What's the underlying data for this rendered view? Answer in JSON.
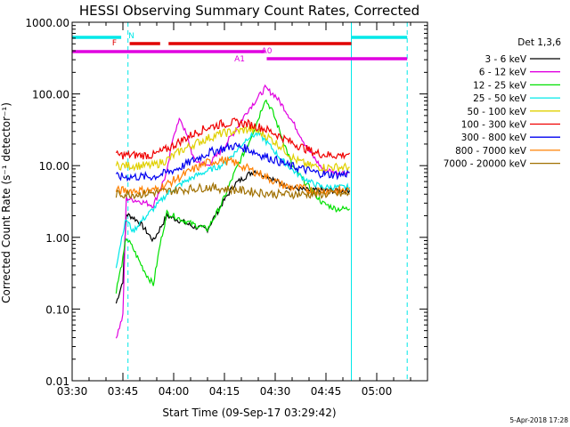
{
  "chart_data": {
    "type": "line",
    "title": "HESSI Observing Summary Count Rates, Corrected",
    "xlabel": "Start Time (09-Sep-17 03:29:42)",
    "ylabel": "Corrected Count Rate (s⁻¹ detector⁻¹)",
    "yscale": "log",
    "ylim": [
      0.01,
      1000
    ],
    "xlim_minutes": [
      0,
      105
    ],
    "x_ticks": [
      {
        "m": 0,
        "label": "03:30"
      },
      {
        "m": 15,
        "label": "03:45"
      },
      {
        "m": 30,
        "label": "04:00"
      },
      {
        "m": 45,
        "label": "04:15"
      },
      {
        "m": 60,
        "label": "04:30"
      },
      {
        "m": 75,
        "label": "04:45"
      },
      {
        "m": 90,
        "label": "05:00"
      }
    ],
    "y_ticks": [
      {
        "v": 0.01,
        "label": "0.01"
      },
      {
        "v": 0.1,
        "label": "0.10"
      },
      {
        "v": 1,
        "label": "1.00"
      },
      {
        "v": 10,
        "label": "10.00"
      },
      {
        "v": 100,
        "label": "100.00"
      },
      {
        "v": 1000,
        "label": "1000.00"
      }
    ],
    "legend_title": "Det 1,3,6",
    "legend_placement": "top-right",
    "series": [
      {
        "name": "3 - 6 keV",
        "color": "#000000",
        "points": [
          [
            13,
            0.12
          ],
          [
            15,
            0.25
          ],
          [
            16,
            2.1
          ],
          [
            18,
            1.9
          ],
          [
            20,
            1.6
          ],
          [
            22,
            1.2
          ],
          [
            24,
            0.9
          ],
          [
            28,
            2.0
          ],
          [
            32,
            1.7
          ],
          [
            36,
            1.4
          ],
          [
            40,
            1.3
          ],
          [
            44,
            2.8
          ],
          [
            48,
            5.5
          ],
          [
            52,
            7.5
          ],
          [
            54,
            8.5
          ],
          [
            58,
            7.0
          ],
          [
            62,
            5.5
          ],
          [
            66,
            4.8
          ],
          [
            70,
            4.5
          ],
          [
            74,
            4.5
          ],
          [
            77,
            4.5
          ],
          [
            79,
            4.5
          ],
          [
            82,
            4.5
          ]
        ]
      },
      {
        "name": "6 - 12 keV",
        "color": "#e000e0",
        "points": [
          [
            13,
            0.04
          ],
          [
            15,
            0.08
          ],
          [
            16,
            3.5
          ],
          [
            20,
            3.2
          ],
          [
            24,
            2.8
          ],
          [
            28,
            8.0
          ],
          [
            30,
            28
          ],
          [
            32,
            45
          ],
          [
            34,
            25
          ],
          [
            36,
            12
          ],
          [
            40,
            10
          ],
          [
            44,
            16
          ],
          [
            48,
            30
          ],
          [
            52,
            60
          ],
          [
            55,
            90
          ],
          [
            57,
            120
          ],
          [
            60,
            95
          ],
          [
            63,
            60
          ],
          [
            66,
            35
          ],
          [
            70,
            16
          ],
          [
            74,
            9
          ],
          [
            78,
            8
          ],
          [
            82,
            8
          ]
        ]
      },
      {
        "name": "12 - 25 keV",
        "color": "#00e000",
        "points": [
          [
            13,
            0.18
          ],
          [
            15,
            0.5
          ],
          [
            16,
            1.0
          ],
          [
            18,
            0.7
          ],
          [
            20,
            0.45
          ],
          [
            22,
            0.3
          ],
          [
            24,
            0.22
          ],
          [
            26,
            0.8
          ],
          [
            28,
            2.2
          ],
          [
            32,
            1.8
          ],
          [
            36,
            1.5
          ],
          [
            40,
            1.3
          ],
          [
            44,
            2.8
          ],
          [
            48,
            8
          ],
          [
            52,
            20
          ],
          [
            55,
            45
          ],
          [
            57,
            85
          ],
          [
            59,
            60
          ],
          [
            62,
            25
          ],
          [
            65,
            10
          ],
          [
            70,
            5
          ],
          [
            74,
            3.0
          ],
          [
            78,
            2.5
          ],
          [
            82,
            2.5
          ]
        ]
      },
      {
        "name": "25 - 50 keV",
        "color": "#00e8e8",
        "points": [
          [
            13,
            0.4
          ],
          [
            15,
            1.2
          ],
          [
            16,
            1.8
          ],
          [
            18,
            1.2
          ],
          [
            20,
            1.6
          ],
          [
            22,
            2.0
          ],
          [
            24,
            2.5
          ],
          [
            28,
            4.0
          ],
          [
            32,
            5.5
          ],
          [
            36,
            7.0
          ],
          [
            40,
            8.5
          ],
          [
            44,
            10
          ],
          [
            48,
            15
          ],
          [
            52,
            25
          ],
          [
            55,
            28
          ],
          [
            58,
            20
          ],
          [
            62,
            12
          ],
          [
            66,
            8
          ],
          [
            70,
            6
          ],
          [
            74,
            5
          ],
          [
            78,
            5
          ],
          [
            82,
            5
          ]
        ]
      },
      {
        "name": "50 - 100 keV",
        "color": "#e0d000",
        "points": [
          [
            13,
            10
          ],
          [
            16,
            10
          ],
          [
            20,
            10
          ],
          [
            24,
            10
          ],
          [
            28,
            12
          ],
          [
            32,
            16
          ],
          [
            36,
            20
          ],
          [
            40,
            24
          ],
          [
            44,
            28
          ],
          [
            48,
            30
          ],
          [
            52,
            32
          ],
          [
            55,
            30
          ],
          [
            58,
            25
          ],
          [
            62,
            18
          ],
          [
            66,
            12
          ],
          [
            70,
            10
          ],
          [
            74,
            9.5
          ],
          [
            78,
            9.5
          ],
          [
            82,
            9.5
          ]
        ]
      },
      {
        "name": "100 - 300 keV",
        "color": "#f00000",
        "points": [
          [
            13,
            14
          ],
          [
            16,
            14
          ],
          [
            20,
            14
          ],
          [
            24,
            14
          ],
          [
            28,
            17
          ],
          [
            32,
            22
          ],
          [
            36,
            28
          ],
          [
            40,
            34
          ],
          [
            44,
            38
          ],
          [
            48,
            40
          ],
          [
            52,
            38
          ],
          [
            56,
            34
          ],
          [
            60,
            28
          ],
          [
            64,
            22
          ],
          [
            68,
            18
          ],
          [
            72,
            15
          ],
          [
            76,
            14
          ],
          [
            80,
            14
          ],
          [
            82,
            15
          ]
        ]
      },
      {
        "name": "300 - 800 keV",
        "color": "#0000f0",
        "points": [
          [
            13,
            7
          ],
          [
            16,
            7
          ],
          [
            20,
            7
          ],
          [
            24,
            7
          ],
          [
            28,
            8
          ],
          [
            32,
            9.5
          ],
          [
            36,
            12
          ],
          [
            40,
            15
          ],
          [
            44,
            17
          ],
          [
            48,
            19
          ],
          [
            52,
            17
          ],
          [
            56,
            14
          ],
          [
            60,
            12
          ],
          [
            64,
            10
          ],
          [
            68,
            9
          ],
          [
            72,
            8
          ],
          [
            76,
            7.5
          ],
          [
            80,
            7.5
          ],
          [
            82,
            8
          ]
        ]
      },
      {
        "name": "800 - 7000 keV",
        "color": "#ff8000",
        "points": [
          [
            13,
            4.5
          ],
          [
            16,
            4.5
          ],
          [
            20,
            4.5
          ],
          [
            24,
            4.5
          ],
          [
            28,
            5.5
          ],
          [
            32,
            7.0
          ],
          [
            36,
            9.0
          ],
          [
            40,
            11
          ],
          [
            44,
            12
          ],
          [
            48,
            11
          ],
          [
            52,
            9
          ],
          [
            56,
            7.5
          ],
          [
            60,
            6.0
          ],
          [
            64,
            5.0
          ],
          [
            68,
            4.8
          ],
          [
            72,
            4.5
          ],
          [
            76,
            4.5
          ],
          [
            80,
            4.5
          ],
          [
            82,
            4.5
          ]
        ]
      },
      {
        "name": "7000 - 20000 keV",
        "color": "#a07000",
        "points": [
          [
            13,
            4.0
          ],
          [
            20,
            4.0
          ],
          [
            30,
            4.5
          ],
          [
            40,
            5.0
          ],
          [
            50,
            4.5
          ],
          [
            60,
            4.0
          ],
          [
            70,
            4.0
          ],
          [
            82,
            4.0
          ]
        ]
      }
    ],
    "annotations": {
      "bars": [
        {
          "label": "N",
          "color": "#00e8e8",
          "segments": [
            [
              0,
              14.5
            ],
            [
              82.5,
              99
            ]
          ]
        },
        {
          "label": "F",
          "color": "#e00000",
          "segments": [
            [
              17,
              26
            ],
            [
              28.5,
              82.5
            ]
          ]
        },
        {
          "label": "A0",
          "color": "#e000e0",
          "segments": [
            [
              0,
              57
            ]
          ]
        },
        {
          "label": "A1",
          "color": "#e000e0",
          "segments": [
            [
              57.5,
              99
            ]
          ]
        }
      ],
      "solid_vlines": [
        0,
        82.5
      ],
      "dashed_vlines": [
        16.5,
        99
      ]
    },
    "footer_date": "5-Apr-2018 17:28"
  }
}
